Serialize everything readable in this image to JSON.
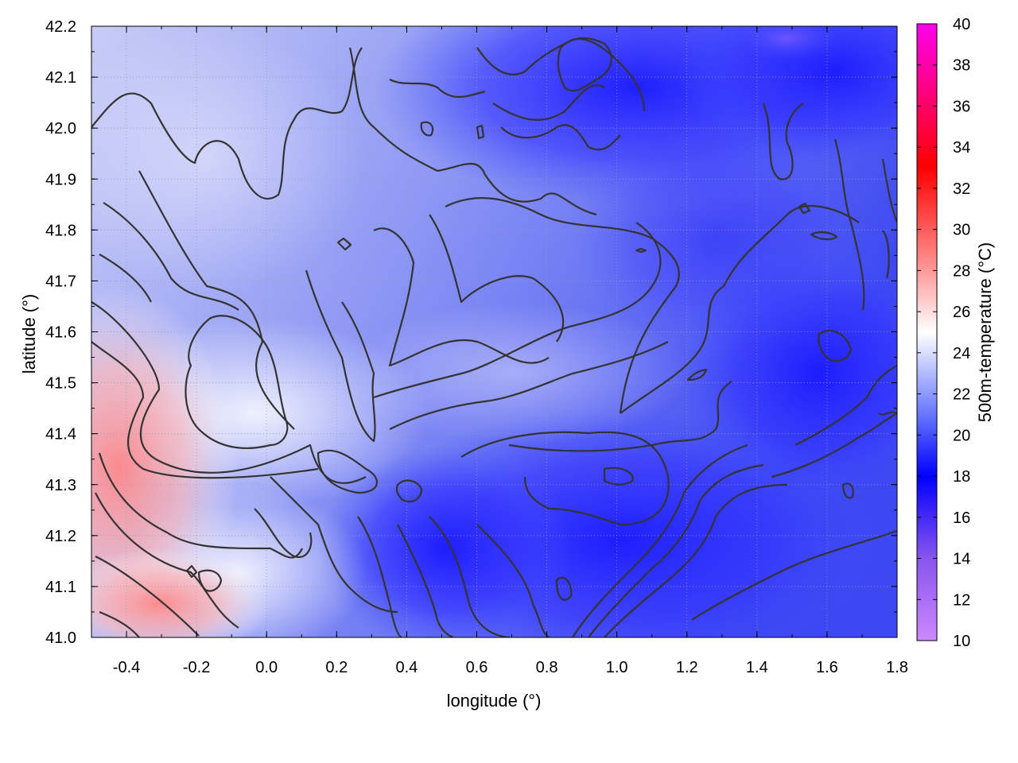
{
  "chart_data": {
    "type": "heatmap",
    "title": "",
    "xlabel": "longitude (°)",
    "ylabel": "latitude (°)",
    "colorbar_label": "500m-temperature (°C)",
    "xlim": [
      -0.5,
      1.8
    ],
    "ylim": [
      41.0,
      42.2
    ],
    "x_ticks": [
      "-0.4",
      "-0.2",
      "0.0",
      "0.2",
      "0.4",
      "0.6",
      "0.8",
      "1.0",
      "1.2",
      "1.4",
      "1.6",
      "1.8"
    ],
    "y_ticks": [
      "41.0",
      "41.1",
      "41.2",
      "41.3",
      "41.4",
      "41.5",
      "41.6",
      "41.7",
      "41.8",
      "41.9",
      "42.0",
      "42.1",
      "42.2"
    ],
    "colorbar_range": [
      10,
      40
    ],
    "colorbar_ticks": [
      "10",
      "12",
      "14",
      "16",
      "18",
      "20",
      "22",
      "24",
      "26",
      "28",
      "30",
      "32",
      "34",
      "36",
      "38",
      "40"
    ],
    "colorscale": [
      {
        "value": 10,
        "color": "#cc88ff"
      },
      {
        "value": 14,
        "color": "#8855ee"
      },
      {
        "value": 18,
        "color": "#0000ff"
      },
      {
        "value": 21,
        "color": "#6677ff"
      },
      {
        "value": 25,
        "color": "#ffffff"
      },
      {
        "value": 28,
        "color": "#ff9999"
      },
      {
        "value": 33,
        "color": "#ff0000"
      },
      {
        "value": 36,
        "color": "#ff0066"
      },
      {
        "value": 40,
        "color": "#ff00ee"
      }
    ],
    "grid": true,
    "contour_color": "#333333",
    "field_regions": [
      {
        "name": "warm-southwest",
        "lon": -0.42,
        "lat": 41.3,
        "temp": 27.5
      },
      {
        "name": "cool-northeast",
        "lon": 1.55,
        "lat": 42.15,
        "temp": 16.0
      },
      {
        "name": "cool-north-center",
        "lon": 0.85,
        "lat": 42.05,
        "temp": 17.0
      },
      {
        "name": "cool-south-center",
        "lon": 0.95,
        "lat": 41.15,
        "temp": 17.0
      },
      {
        "name": "mild-west",
        "lon": -0.1,
        "lat": 41.7,
        "temp": 22.5
      },
      {
        "name": "mild-center",
        "lon": 0.6,
        "lat": 41.7,
        "temp": 21.0
      }
    ]
  }
}
